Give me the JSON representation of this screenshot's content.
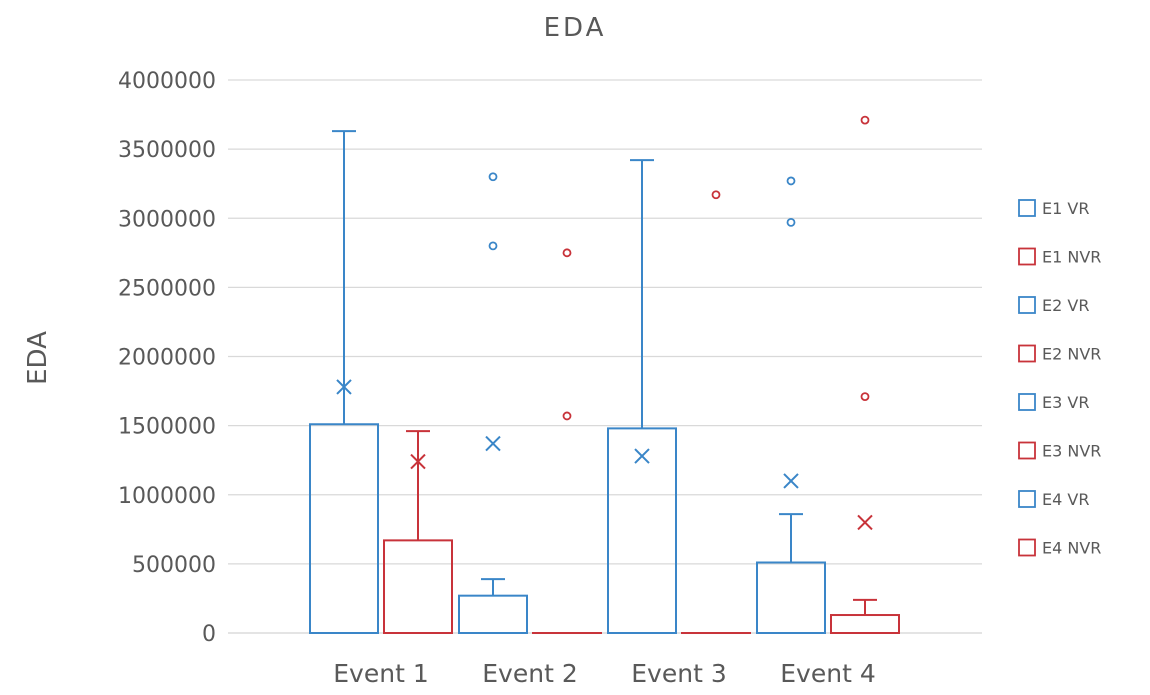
{
  "chart_data": {
    "type": "box",
    "title": "EDA",
    "ylabel": "EDA",
    "xlabel": "",
    "ylim": [
      0,
      4000000
    ],
    "yticks": [
      0,
      500000,
      1000000,
      1500000,
      2000000,
      2500000,
      3000000,
      3500000,
      4000000
    ],
    "ytick_labels": [
      "0",
      "500000",
      "1000000",
      "1500000",
      "2000000",
      "2500000",
      "3000000",
      "3500000",
      "4000000"
    ],
    "grid": true,
    "legend_position": "right",
    "categories": [
      "Event 1",
      "Event 2",
      "Event 3",
      "Event 4"
    ],
    "series": [
      {
        "name": "E1 VR",
        "category": 0,
        "color": "#3a86c8",
        "q1": 0,
        "median": 0,
        "q3": 1510000,
        "whisker_low": 0,
        "whisker_high": 3630000,
        "mean": 1780000,
        "outliers": []
      },
      {
        "name": "E1 NVR",
        "category": 0,
        "color": "#c8333a",
        "q1": 0,
        "median": 0,
        "q3": 670000,
        "whisker_low": 0,
        "whisker_high": 1460000,
        "mean": 1240000,
        "outliers": []
      },
      {
        "name": "E2 VR",
        "category": 1,
        "color": "#3a86c8",
        "q1": 0,
        "median": 0,
        "q3": 270000,
        "whisker_low": 0,
        "whisker_high": 390000,
        "mean": 1370000,
        "outliers": [
          3300000,
          2800000
        ]
      },
      {
        "name": "E2 NVR",
        "category": 1,
        "color": "#c8333a",
        "q1": 0,
        "median": 0,
        "q3": 0,
        "whisker_low": 0,
        "whisker_high": 0,
        "mean": null,
        "outliers": [
          2750000,
          1570000
        ]
      },
      {
        "name": "E3 VR",
        "category": 2,
        "color": "#3a86c8",
        "q1": 0,
        "median": 0,
        "q3": 1480000,
        "whisker_low": 0,
        "whisker_high": 3420000,
        "mean": 1280000,
        "outliers": []
      },
      {
        "name": "E3 NVR",
        "category": 2,
        "color": "#c8333a",
        "q1": 0,
        "median": 0,
        "q3": 0,
        "whisker_low": 0,
        "whisker_high": 0,
        "mean": null,
        "outliers": [
          3170000
        ]
      },
      {
        "name": "E4 VR",
        "category": 3,
        "color": "#3a86c8",
        "q1": 0,
        "median": 0,
        "q3": 510000,
        "whisker_low": 0,
        "whisker_high": 860000,
        "mean": 1100000,
        "outliers": [
          3270000,
          2970000
        ]
      },
      {
        "name": "E4 NVR",
        "category": 3,
        "color": "#c8333a",
        "q1": 0,
        "median": 0,
        "q3": 130000,
        "whisker_low": 0,
        "whisker_high": 240000,
        "mean": 800000,
        "outliers": [
          3710000,
          1710000
        ]
      }
    ]
  }
}
